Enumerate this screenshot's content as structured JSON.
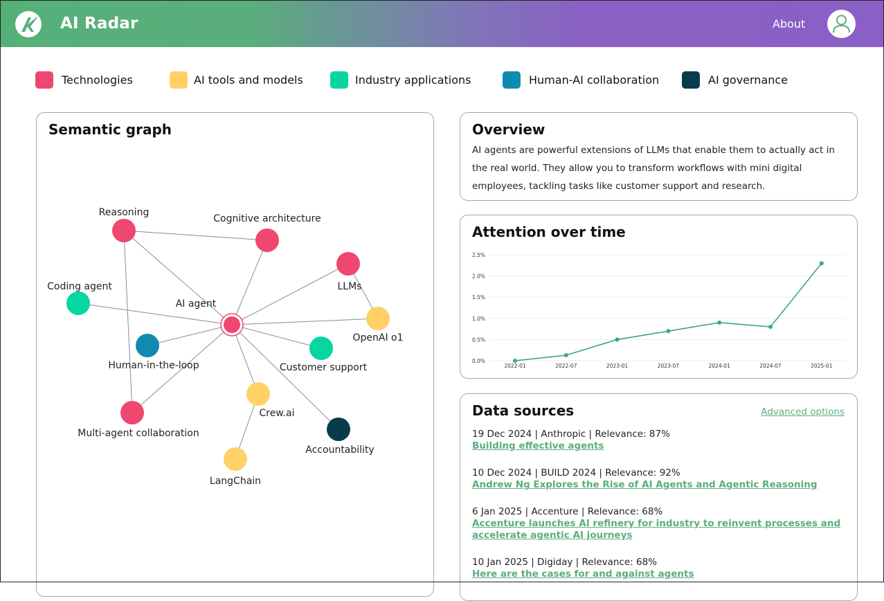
{
  "header": {
    "app_name": "AI Radar",
    "logo_icon": "ai-radar-logo-icon",
    "about_label": "About",
    "avatar_icon": "user-avatar-icon"
  },
  "legend": [
    {
      "label": "Technologies",
      "color": "#ef476f"
    },
    {
      "label": "AI tools and models",
      "color": "#ffd166"
    },
    {
      "label": "Industry applications",
      "color": "#06d6a0"
    },
    {
      "label": "Human-AI collaboration",
      "color": "#118ab2"
    },
    {
      "label": "AI governance",
      "color": "#073b4c"
    }
  ],
  "graph": {
    "title": "Semantic graph",
    "nodes": [
      {
        "id": "ai-agent",
        "label": "AI agent",
        "category": 0,
        "center": true
      },
      {
        "id": "reasoning",
        "label": "Reasoning",
        "category": 0
      },
      {
        "id": "cognitive-architecture",
        "label": "Cognitive architecture",
        "category": 0
      },
      {
        "id": "llms",
        "label": "LLMs",
        "category": 0
      },
      {
        "id": "coding-agent",
        "label": "Coding agent",
        "category": 2
      },
      {
        "id": "openai-o1",
        "label": "OpenAI o1",
        "category": 1
      },
      {
        "id": "human-in-the-loop",
        "label": "Human-in-the-loop",
        "category": 3
      },
      {
        "id": "customer-support",
        "label": "Customer support",
        "category": 2
      },
      {
        "id": "crew-ai",
        "label": "Crew.ai",
        "category": 1
      },
      {
        "id": "multi-agent-collaboration",
        "label": "Multi-agent collaboration",
        "category": 0
      },
      {
        "id": "accountability",
        "label": "Accountability",
        "category": 4
      },
      {
        "id": "langchain",
        "label": "LangChain",
        "category": 1
      }
    ],
    "edges": [
      [
        "ai-agent",
        "reasoning"
      ],
      [
        "ai-agent",
        "cognitive-architecture"
      ],
      [
        "ai-agent",
        "llms"
      ],
      [
        "ai-agent",
        "coding-agent"
      ],
      [
        "ai-agent",
        "openai-o1"
      ],
      [
        "ai-agent",
        "human-in-the-loop"
      ],
      [
        "ai-agent",
        "customer-support"
      ],
      [
        "ai-agent",
        "crew-ai"
      ],
      [
        "ai-agent",
        "multi-agent-collaboration"
      ],
      [
        "ai-agent",
        "accountability"
      ],
      [
        "reasoning",
        "cognitive-architecture"
      ],
      [
        "reasoning",
        "multi-agent-collaboration"
      ],
      [
        "llms",
        "openai-o1"
      ],
      [
        "crew-ai",
        "langchain"
      ]
    ]
  },
  "overview": {
    "title": "Overview",
    "text": "AI agents are powerful extensions of LLMs that enable them to actually act in the real world. They allow you to transform workflows with mini digital employees, tackling tasks like customer support and research."
  },
  "attention": {
    "title": "Attention over time"
  },
  "chart_data": {
    "type": "line",
    "title": "Attention over time",
    "x": [
      "2022-01",
      "2022-07",
      "2023-01",
      "2023-07",
      "2024-01",
      "2024-07",
      "2025-01"
    ],
    "y_ticks": [
      "0.0%",
      "0.5%",
      "1.0%",
      "1.5%",
      "2.0%",
      "2.5%"
    ],
    "series": [
      {
        "values": [
          0.0,
          0.13,
          0.5,
          0.7,
          0.9,
          0.8,
          2.3
        ],
        "color": "#3aaa72"
      }
    ],
    "ylim": [
      0,
      2.5
    ],
    "grid": true
  },
  "sources": {
    "title": "Data sources",
    "advanced_label": "Advanced options",
    "items": [
      {
        "meta": "19 Dec 2024 | Anthropic | Relevance: 87%",
        "link": "Building effective agents"
      },
      {
        "meta": "10 Dec 2024 | BUILD 2024 | Relevance: 92%",
        "link": "Andrew Ng Explores the Rise of AI Agents and Agentic Reasoning"
      },
      {
        "meta": "6 Jan 2025 | Accenture | Relevance: 68%",
        "link": "Accenture launches AI refinery for industry to reinvent processes and accelerate agentic AI journeys"
      },
      {
        "meta": "10 Jan 2025 | Digiday | Relevance: 68%",
        "link": "Here are the cases for and against agents"
      }
    ]
  }
}
